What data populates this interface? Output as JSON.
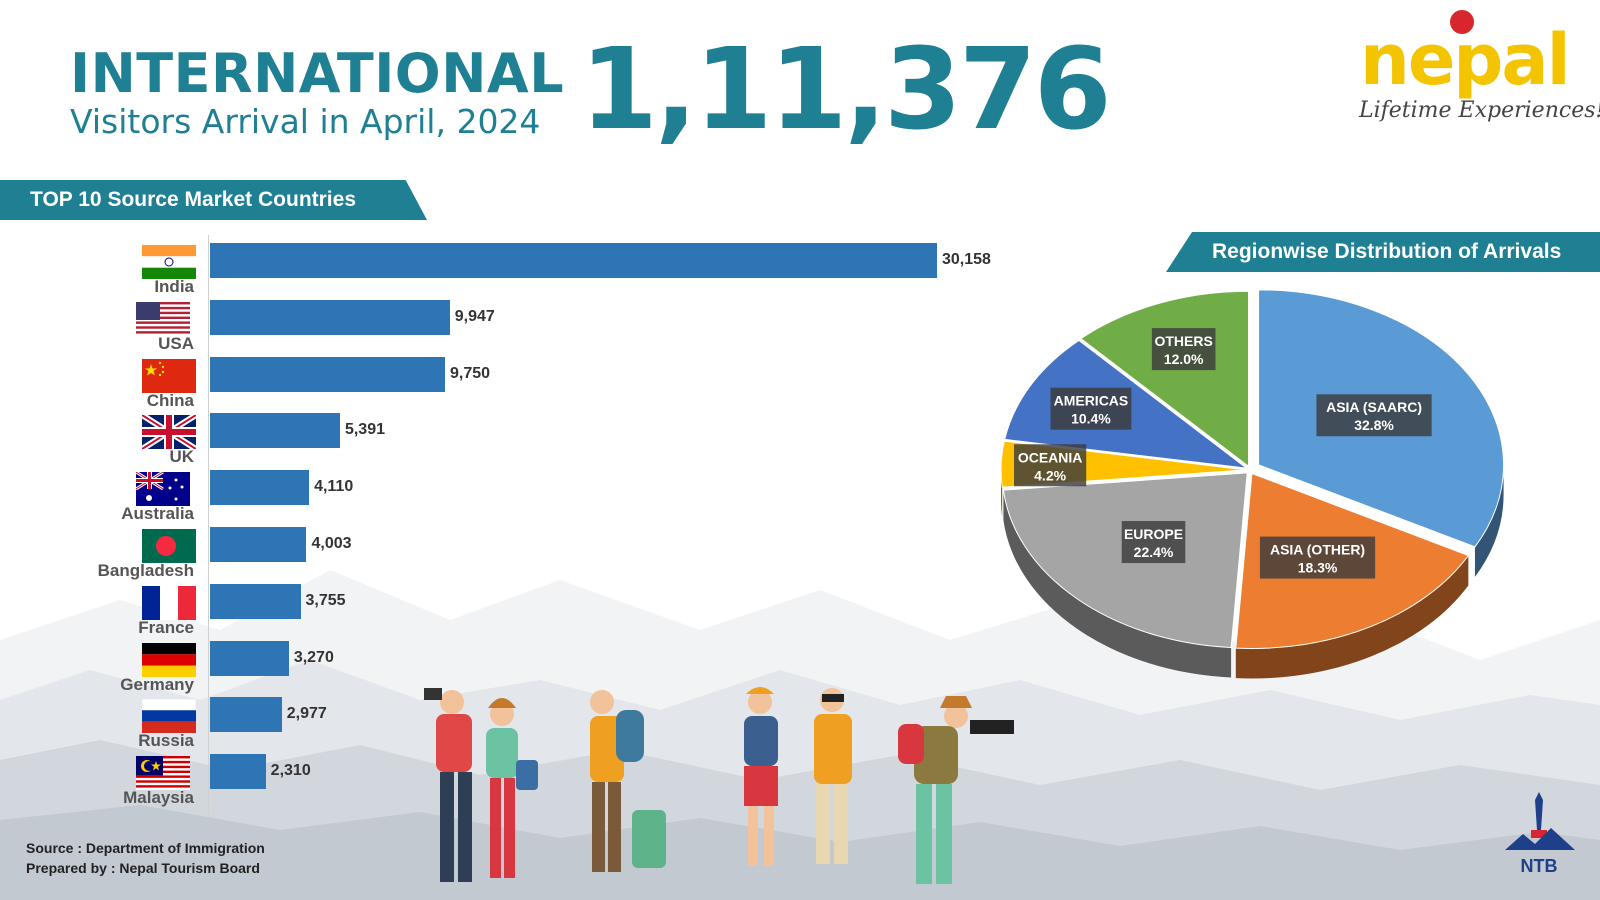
{
  "header": {
    "title_big": "INTERNATIONAL",
    "title_sub": "Visitors Arrival in April, 2024",
    "total": "1,11,376"
  },
  "logo": {
    "word": "nepal",
    "tagline": "Lifetime Experiences!"
  },
  "bar_section_title": "TOP 10 Source Market Countries",
  "pie_section_title": "Regionwise Distribution of Arrivals",
  "source": {
    "line1": "Source : Department of Immigration",
    "line2": "Prepared by : Nepal Tourism Board"
  },
  "ntb_mark": "NTB",
  "colors": {
    "teal": "#1f7f93",
    "bar": "#2e75b6",
    "asia_saarc": "#5b9bd5",
    "asia_other": "#ed7d31",
    "europe": "#a5a5a5",
    "oceania": "#ffc000",
    "americas": "#4472c4",
    "others": "#70ad47"
  },
  "chart_data": [
    {
      "type": "bar",
      "orientation": "horizontal",
      "title": "TOP 10 Source Market Countries",
      "categories": [
        "India",
        "USA",
        "China",
        "UK",
        "Australia",
        "Bangladesh",
        "France",
        "Germany",
        "Russia",
        "Malaysia"
      ],
      "values": [
        30158,
        9947,
        9750,
        5391,
        4110,
        4003,
        3755,
        3270,
        2977,
        2310
      ],
      "value_labels": [
        "30,158",
        "9,947",
        "9,750",
        "5,391",
        "4,110",
        "4,003",
        "3,755",
        "3,270",
        "2,977",
        "2,310"
      ],
      "flags": [
        "india-flag",
        "usa-flag",
        "china-flag",
        "uk-flag",
        "australia-flag",
        "bangladesh-flag",
        "france-flag",
        "germany-flag",
        "russia-flag",
        "malaysia-flag"
      ],
      "grid": false
    },
    {
      "type": "pie",
      "title": "Regionwise Distribution of Arrivals",
      "labels": [
        "ASIA (SAARC)",
        "ASIA (OTHER)",
        "EUROPE",
        "OCEANIA",
        "AMERICAS",
        "OTHERS"
      ],
      "values": [
        32.8,
        18.3,
        22.4,
        4.2,
        10.4,
        12.0
      ],
      "value_labels": [
        "32.8%",
        "18.3%",
        "22.4%",
        "4.2%",
        "10.4%",
        "12.0%"
      ],
      "style": "3d-exploded"
    }
  ]
}
